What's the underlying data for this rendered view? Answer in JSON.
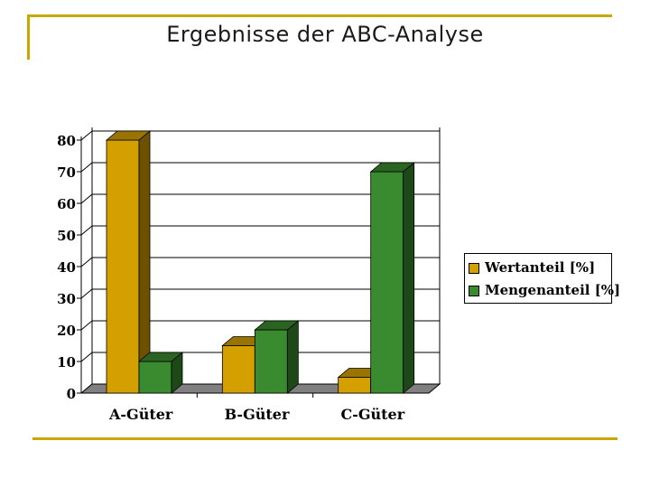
{
  "title": "Ergebnisse der ABC-Analyse",
  "colors": {
    "accent": "#c8a800",
    "wert_front": "#d4a000",
    "wert_side": "#6e5000",
    "wert_top": "#9a7400",
    "menge_front": "#3a8a30",
    "menge_side": "#1e4818",
    "menge_top": "#2a6420",
    "floor": "#808080"
  },
  "chart_data": {
    "type": "bar",
    "categories": [
      "A-Güter",
      "B-Güter",
      "C-Güter"
    ],
    "series": [
      {
        "name": "Wertanteil [%]",
        "values": [
          80,
          15,
          5
        ]
      },
      {
        "name": "Mengenanteil [%]",
        "values": [
          10,
          20,
          70
        ]
      }
    ],
    "ylim": [
      0,
      80
    ],
    "yticks": [
      0,
      10,
      20,
      30,
      40,
      50,
      60,
      70,
      80
    ],
    "yticklabels": [
      "0",
      "10",
      "20",
      "30",
      "40",
      "50",
      "60",
      "70",
      "80"
    ],
    "grid": true,
    "legend": "right",
    "three_d": true
  }
}
